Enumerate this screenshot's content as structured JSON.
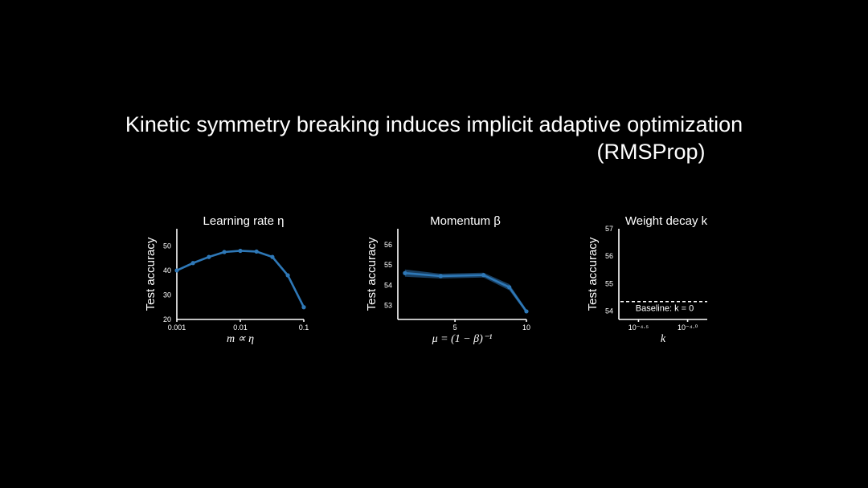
{
  "slide": {
    "title_line1": "Kinetic symmetry breaking induces implicit adaptive optimization",
    "title_line2": "(RMSProp)"
  },
  "colors": {
    "series": "#2e78b7",
    "band": "#1d4a72",
    "background": "#000000"
  },
  "chart_data": [
    {
      "type": "line",
      "title": "Learning rate η",
      "ylabel": "Test accuracy",
      "xlabel": "m ∝ η",
      "xscale": "log",
      "xlim": [
        0.001,
        0.1
      ],
      "ylim": [
        20,
        57
      ],
      "xticks": [
        {
          "v": 0.001,
          "label": "0.001"
        },
        {
          "v": 0.01,
          "label": "0.01"
        },
        {
          "v": 0.1,
          "label": "0.1"
        }
      ],
      "yticks": [
        20,
        30,
        40,
        50
      ],
      "x": [
        0.001,
        0.0018,
        0.0032,
        0.0056,
        0.01,
        0.018,
        0.032,
        0.056,
        0.1
      ],
      "values": [
        40,
        43,
        45.5,
        47.5,
        48,
        47.7,
        45.5,
        38,
        25
      ],
      "markers": true
    },
    {
      "type": "line",
      "title": "Momentum β",
      "ylabel": "Test accuracy",
      "xlabel": "μ = (1 − β)⁻¹",
      "xscale": "linear",
      "xlim": [
        1,
        10
      ],
      "ylim": [
        52.3,
        56.8
      ],
      "xticks": [
        {
          "v": 5,
          "label": "5"
        },
        {
          "v": 10,
          "label": "10"
        }
      ],
      "yticks": [
        53,
        54,
        55,
        56
      ],
      "x": [
        1.5,
        4,
        7,
        8.8,
        10
      ],
      "values": [
        54.6,
        54.45,
        54.5,
        53.9,
        52.7
      ],
      "band_halfwidth": [
        0.18,
        0.12,
        0.12,
        0.15,
        0.1
      ],
      "markers": true
    },
    {
      "type": "line",
      "title": "Weight decay k",
      "ylabel": "Test accuracy",
      "xlabel": "k",
      "xscale": "log",
      "xlim": [
        -4.7,
        -3.8
      ],
      "ylim": [
        53.7,
        57
      ],
      "xticks": [
        {
          "v": -4.5,
          "label": "10⁻⁴·⁵"
        },
        {
          "v": -4.0,
          "label": "10⁻⁴·⁰"
        }
      ],
      "yticks": [
        54,
        55,
        56,
        57
      ],
      "baseline": {
        "value": 54.35,
        "label": "Baseline: k = 0"
      }
    }
  ]
}
